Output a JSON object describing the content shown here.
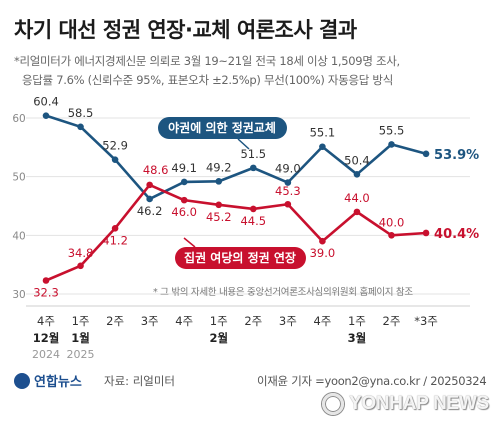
{
  "header": {
    "title": "차기 대선 정권 연장·교체 여론조사 결과",
    "note_line1": "*리얼미터가 에너지경제신문 의뢰로 3월 19~21일 전국 18세 이상 1,509명 조사,",
    "note_line2": "응답률 7.6% (신뢰수준 95%, 표본오차 ±2.5%p) 무선(100%) 자동응답 방식"
  },
  "chart_data": {
    "type": "line",
    "x": [
      "4주",
      "1주",
      "2주",
      "3주",
      "4주",
      "1주",
      "2주",
      "3주",
      "4주",
      "1주",
      "2주",
      "*3주"
    ],
    "month_labels": [
      "12월",
      "1월",
      "",
      "",
      "",
      "2월",
      "",
      "",
      "",
      "3월",
      "",
      ""
    ],
    "year_labels": [
      "2024",
      "2025",
      "",
      "",
      "",
      "",
      "",
      "",
      "",
      "",
      "",
      ""
    ],
    "ylim": [
      30,
      60
    ],
    "yticks": [
      30,
      40,
      50,
      60
    ],
    "series": [
      {
        "name": "야권에 의한 정권교체",
        "color": "#1d5580",
        "values": [
          60.4,
          58.5,
          52.9,
          46.2,
          49.1,
          49.2,
          51.5,
          49.0,
          55.1,
          50.4,
          55.5,
          53.9
        ],
        "last_label": "53.9%"
      },
      {
        "name": "집권 여당의 정권 연장",
        "color": "#c8102e",
        "values": [
          32.3,
          34.8,
          41.2,
          48.6,
          46.0,
          45.2,
          44.5,
          45.3,
          39.0,
          44.0,
          40.0,
          40.4
        ],
        "last_label": "40.4%"
      }
    ],
    "annotation": "* 그 밖의 자세한 내용은 중앙선거여론조사심의위원회 홈페이지 참조"
  },
  "footer": {
    "logo": "연합뉴스",
    "source": "자료: 리얼미터",
    "credit": "이재윤 기자 =yoon2@yna.co.kr / 20250324",
    "watermark": "YONHAP NEWS"
  }
}
